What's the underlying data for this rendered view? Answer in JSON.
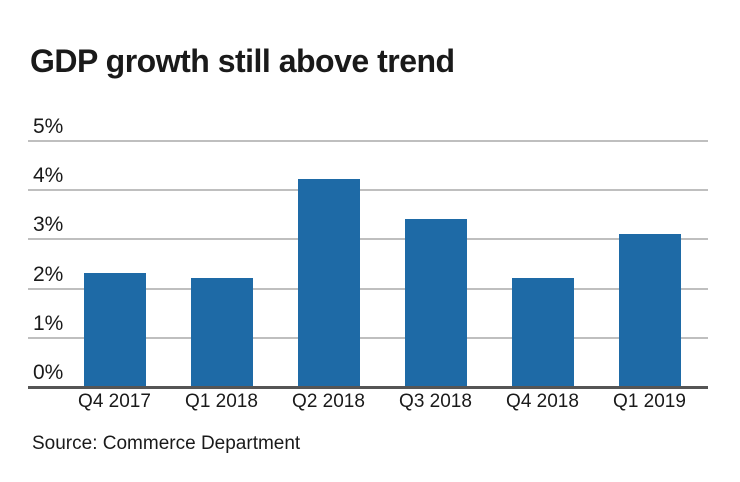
{
  "title": "GDP growth still above trend",
  "source": "Source: Commerce Department",
  "colors": {
    "bar": "#1e6aa6",
    "gridline": "#bfbfbf",
    "axis": "#555555",
    "text": "#1a1a1a"
  },
  "chart_data": {
    "type": "bar",
    "title": "GDP growth still above trend",
    "categories": [
      "Q4 2017",
      "Q1 2018",
      "Q2 2018",
      "Q3 2018",
      "Q4 2018",
      "Q1 2019"
    ],
    "values": [
      2.3,
      2.2,
      4.2,
      3.4,
      2.2,
      3.1
    ],
    "unit": "%",
    "xlabel": "",
    "ylabel": "",
    "ylim": [
      0,
      5
    ],
    "y_ticks": [
      {
        "label": "5%",
        "value": 5
      },
      {
        "label": "4%",
        "value": 4
      },
      {
        "label": "3%",
        "value": 3
      },
      {
        "label": "2%",
        "value": 2
      },
      {
        "label": "1%",
        "value": 1
      },
      {
        "label": "0%",
        "value": 0
      }
    ],
    "grid": true,
    "legend": false,
    "source": "Source: Commerce Department"
  }
}
